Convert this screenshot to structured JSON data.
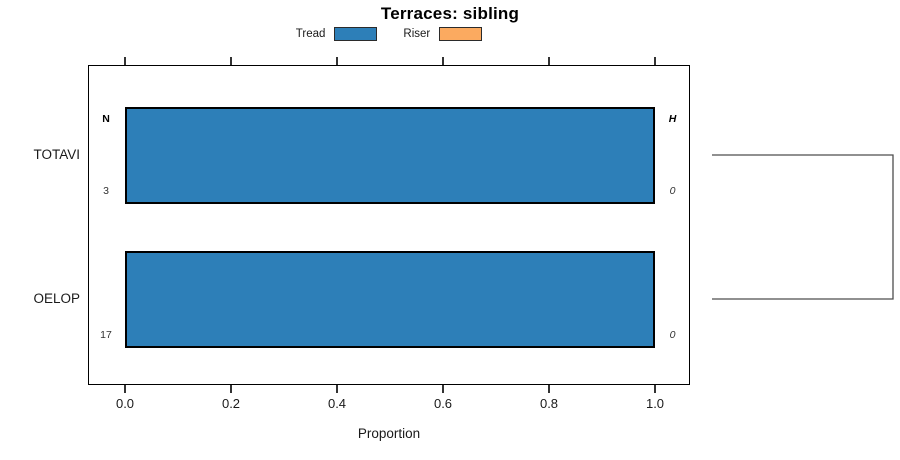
{
  "chart_data": {
    "type": "bar",
    "orientation": "horizontal",
    "title": "Terraces: sibling",
    "xlabel": "Proportion",
    "categories": [
      "TOTAVI",
      "OELOP"
    ],
    "series": [
      {
        "name": "Tread",
        "color": "#2d7fb8",
        "values": [
          1.0,
          1.0
        ]
      },
      {
        "name": "Riser",
        "color": "#fbaa60",
        "values": [
          0.0,
          0.0
        ]
      }
    ],
    "xlim": [
      0,
      1
    ],
    "x_tick_labels": [
      "0.0",
      "0.2",
      "0.4",
      "0.6",
      "0.8",
      "1.0"
    ],
    "grid": false,
    "legend_position": "top-center",
    "row_annotations": [
      {
        "category": "TOTAVI",
        "left_top": "N",
        "left_bottom": "3",
        "right_top": "H",
        "right_bottom": "0"
      },
      {
        "category": "OELOP",
        "left_top": "",
        "left_bottom": "17",
        "right_top": "",
        "right_bottom": "0"
      }
    ],
    "dendrogram": {
      "joined_rows": [
        "TOTAVI",
        "OELOP"
      ]
    }
  }
}
